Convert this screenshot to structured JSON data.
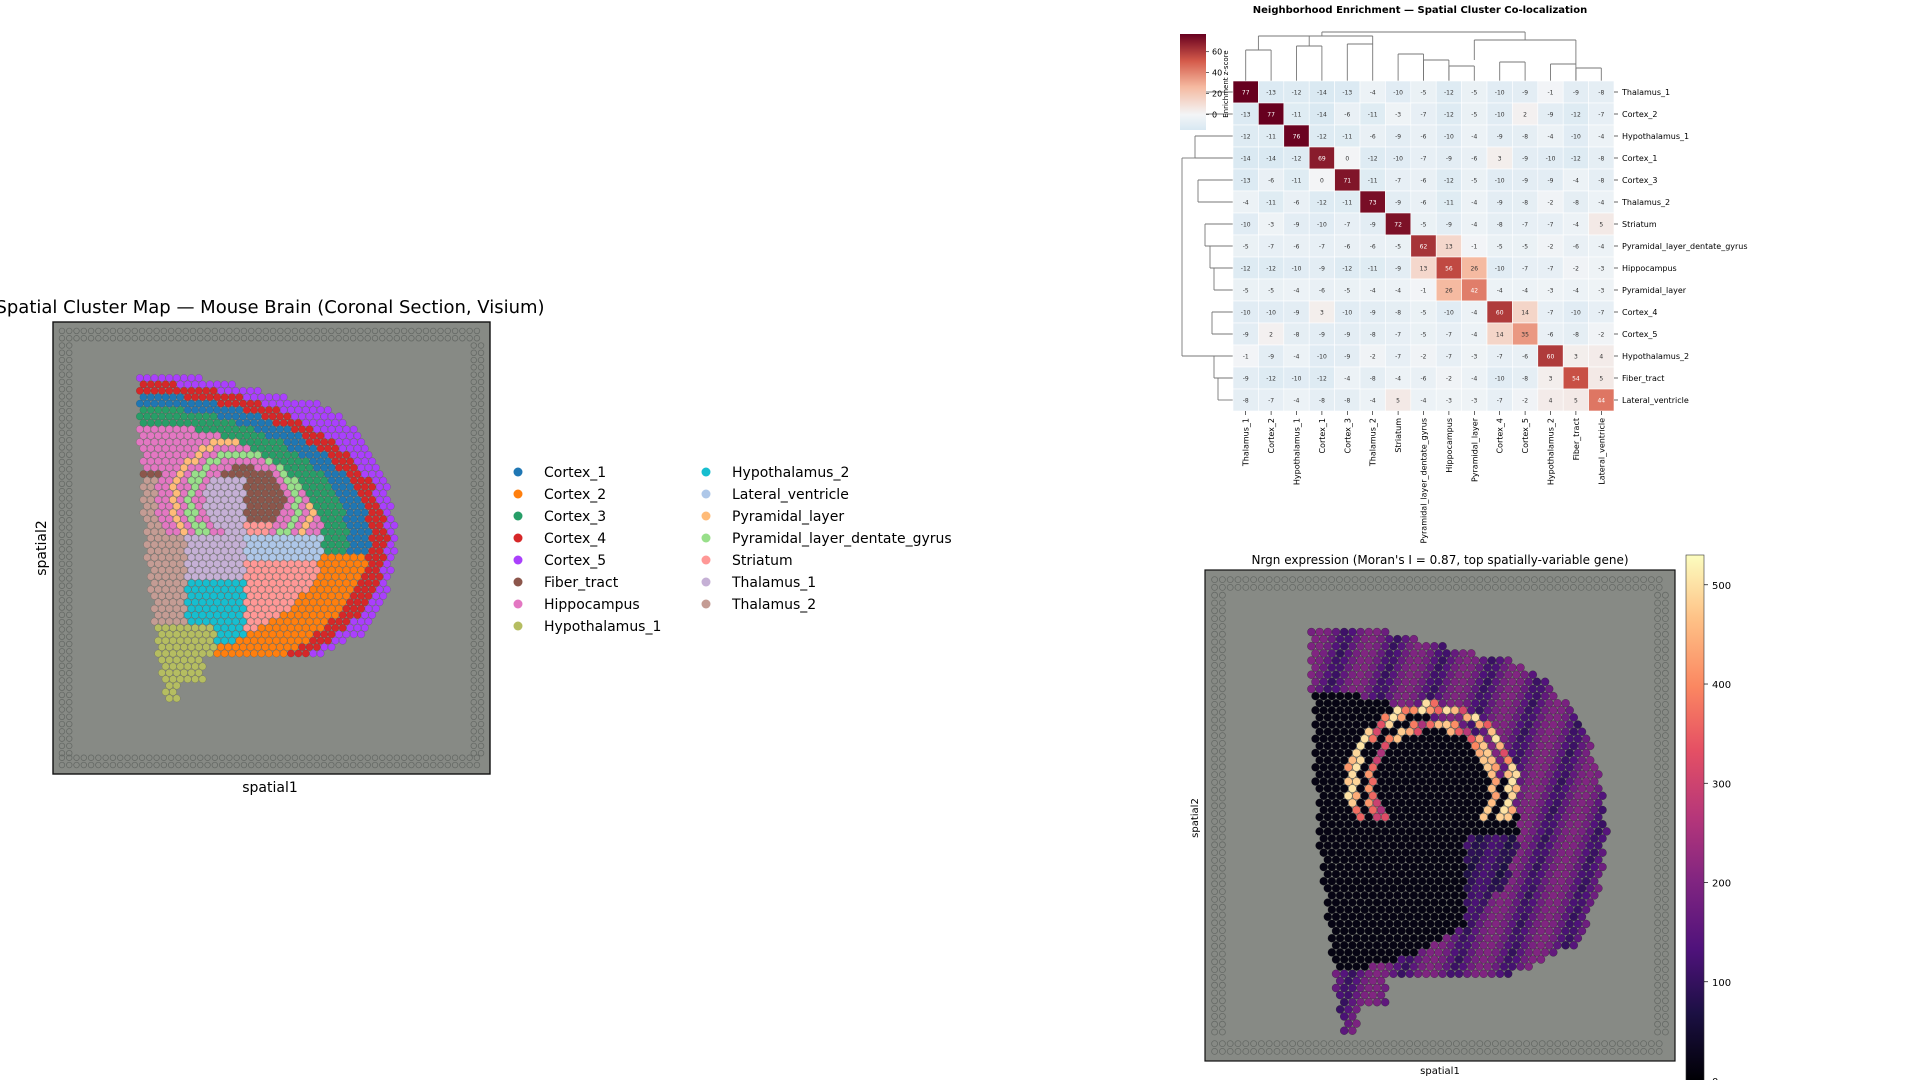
{
  "cluster_panel": {
    "title": "Spatial Cluster Map — Mouse Brain (Coronal Section, Visium)",
    "xlabel": "spatial1",
    "ylabel": "spatial2"
  },
  "legend": {
    "entries": [
      {
        "label": "Cortex_1",
        "color": "#1f77b4"
      },
      {
        "label": "Cortex_2",
        "color": "#ff7f0e"
      },
      {
        "label": "Cortex_3",
        "color": "#279e68"
      },
      {
        "label": "Cortex_4",
        "color": "#d62728"
      },
      {
        "label": "Cortex_5",
        "color": "#aa40fc"
      },
      {
        "label": "Fiber_tract",
        "color": "#8c564b"
      },
      {
        "label": "Hippocampus",
        "color": "#e377c2"
      },
      {
        "label": "Hypothalamus_1",
        "color": "#b5bd61"
      },
      {
        "label": "Hypothalamus_2",
        "color": "#17becf"
      },
      {
        "label": "Lateral_ventricle",
        "color": "#aec7e8"
      },
      {
        "label": "Pyramidal_layer",
        "color": "#ffbb78"
      },
      {
        "label": "Pyramidal_layer_dentate_gyrus",
        "color": "#98df8a"
      },
      {
        "label": "Striatum",
        "color": "#ff9896"
      },
      {
        "label": "Thalamus_1",
        "color": "#c5b0d5"
      },
      {
        "label": "Thalamus_2",
        "color": "#c49c94"
      }
    ]
  },
  "heatmap_panel": {
    "title": "Neighborhood Enrichment — Spatial Cluster Co-localization",
    "colorbar_label": "Enrichment z-score",
    "colorbar_ticks": [
      "0",
      "20",
      "40",
      "60"
    ]
  },
  "expression_panel": {
    "title": "Nrgn expression (Moran's I = 0.87, top spatially-variable gene)",
    "xlabel": "spatial1",
    "ylabel": "spatial2",
    "colorbar_ticks": [
      "0",
      "100",
      "200",
      "300",
      "400",
      "500"
    ]
  },
  "chart_data": [
    {
      "type": "scatter",
      "title": "Spatial Cluster Map — Mouse Brain (Coronal Section, Visium)",
      "xlabel": "spatial1",
      "ylabel": "spatial2",
      "grid": false,
      "legend_placement": "right (outside, two columns)",
      "series": [
        {
          "name": "Cortex_1"
        },
        {
          "name": "Cortex_2"
        },
        {
          "name": "Cortex_3"
        },
        {
          "name": "Cortex_4"
        },
        {
          "name": "Cortex_5"
        },
        {
          "name": "Fiber_tract"
        },
        {
          "name": "Hippocampus"
        },
        {
          "name": "Hypothalamus_1"
        },
        {
          "name": "Hypothalamus_2"
        },
        {
          "name": "Lateral_ventricle"
        },
        {
          "name": "Pyramidal_layer"
        },
        {
          "name": "Pyramidal_layer_dentate_gyrus"
        },
        {
          "name": "Striatum"
        },
        {
          "name": "Thalamus_1"
        },
        {
          "name": "Thalamus_2"
        }
      ]
    },
    {
      "type": "heatmap",
      "title": "Neighborhood Enrichment — Spatial Cluster Co-localization",
      "colorbar_label": "Enrichment z-score",
      "clim": [
        -15,
        77
      ],
      "colorbar_ticks": [
        0,
        20,
        40,
        60
      ],
      "labels": [
        "Thalamus_1",
        "Cortex_2",
        "Hypothalamus_1",
        "Cortex_1",
        "Cortex_3",
        "Thalamus_2",
        "Striatum",
        "Pyramidal_layer_dentate_gyrus",
        "Hippocampus",
        "Pyramidal_layer",
        "Cortex_4",
        "Cortex_5",
        "Hypothalamus_2",
        "Fiber_tract",
        "Lateral_ventricle"
      ],
      "matrix": [
        [
          77,
          -13,
          -12,
          -14,
          -13,
          -4,
          -10,
          -5,
          -12,
          -5,
          -10,
          -9,
          -1,
          -9,
          -8
        ],
        [
          -13,
          77,
          -11,
          -14,
          -6,
          -11,
          -3,
          -7,
          -12,
          -5,
          -10,
          2,
          -9,
          -12,
          -7
        ],
        [
          -12,
          -11,
          76,
          -12,
          -11,
          -6,
          -9,
          -6,
          -10,
          -4,
          -9,
          -8,
          -4,
          -10,
          -4
        ],
        [
          -14,
          -14,
          -12,
          69,
          0,
          -12,
          -10,
          -7,
          -9,
          -6,
          3,
          -9,
          -10,
          -12,
          -8
        ],
        [
          -13,
          -6,
          -11,
          0,
          71,
          -11,
          -7,
          -6,
          -12,
          -5,
          -10,
          -9,
          -9,
          -4,
          -8
        ],
        [
          -4,
          -11,
          -6,
          -12,
          -11,
          73,
          -9,
          -6,
          -11,
          -4,
          -9,
          -8,
          -2,
          -8,
          -4
        ],
        [
          -10,
          -3,
          -9,
          -10,
          -7,
          -9,
          72,
          -5,
          -9,
          -4,
          -8,
          -7,
          -7,
          -4,
          5
        ],
        [
          -5,
          -7,
          -6,
          -7,
          -6,
          -6,
          -5,
          62,
          13,
          -1,
          -5,
          -5,
          -2,
          -6,
          -4
        ],
        [
          -12,
          -12,
          -10,
          -9,
          -12,
          -11,
          -9,
          13,
          56,
          26,
          -10,
          -7,
          -7,
          -2,
          -3
        ],
        [
          -5,
          -5,
          -4,
          -6,
          -5,
          -4,
          -4,
          -1,
          26,
          42,
          -4,
          -4,
          -3,
          -4,
          -3
        ],
        [
          -10,
          -10,
          -9,
          3,
          -10,
          -9,
          -8,
          -5,
          -10,
          -4,
          60,
          14,
          -7,
          -10,
          -7
        ],
        [
          -9,
          2,
          -8,
          -9,
          -9,
          -8,
          -7,
          -5,
          -7,
          -4,
          14,
          35,
          -6,
          -8,
          -2
        ],
        [
          -1,
          -9,
          -4,
          -10,
          -9,
          -2,
          -7,
          -2,
          -7,
          -3,
          -7,
          -6,
          60,
          3,
          4
        ],
        [
          -9,
          -12,
          -10,
          -12,
          -4,
          -8,
          -4,
          -6,
          -2,
          -4,
          -10,
          -8,
          3,
          54,
          5
        ],
        [
          -8,
          -7,
          -4,
          -8,
          -8,
          -4,
          5,
          -4,
          -3,
          -3,
          -7,
          -2,
          4,
          5,
          44
        ]
      ]
    },
    {
      "type": "scatter",
      "title": "Nrgn expression (Moran's I = 0.87, top spatially-variable gene)",
      "xlabel": "spatial1",
      "ylabel": "spatial2",
      "colorbar_range": [
        0,
        530
      ],
      "colorbar_ticks": [
        0,
        100,
        200,
        300,
        400,
        500
      ],
      "colormap": "magma"
    }
  ]
}
